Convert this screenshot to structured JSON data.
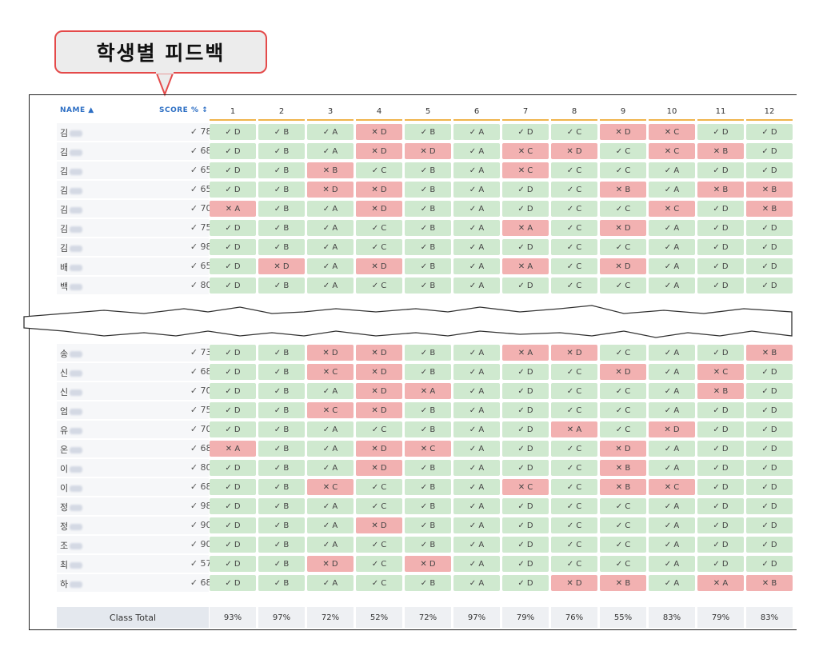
{
  "callout": {
    "title": "학생별 피드백"
  },
  "headers": {
    "name": "NAME ▲",
    "score": "SCORE % ↕"
  },
  "questions": [
    "1",
    "2",
    "3",
    "4",
    "5",
    "6",
    "7",
    "8",
    "9",
    "10",
    "11",
    "12"
  ],
  "colors": {
    "ok": "#cfe9cf",
    "bad": "#f2b1b1",
    "accent": "#2d6fc4",
    "divider": "#f0b44c",
    "callout_border": "#e44a4a"
  },
  "top_rows": [
    {
      "name": "김",
      "score": "78%",
      "cells": [
        [
          "ok",
          "D"
        ],
        [
          "ok",
          "B"
        ],
        [
          "ok",
          "A"
        ],
        [
          "bad",
          "D"
        ],
        [
          "ok",
          "B"
        ],
        [
          "ok",
          "A"
        ],
        [
          "ok",
          "D"
        ],
        [
          "ok",
          "C"
        ],
        [
          "bad",
          "D"
        ],
        [
          "bad",
          "C"
        ],
        [
          "ok",
          "D"
        ],
        [
          "ok",
          "D"
        ]
      ]
    },
    {
      "name": "김",
      "score": "68%",
      "cells": [
        [
          "ok",
          "D"
        ],
        [
          "ok",
          "B"
        ],
        [
          "ok",
          "A"
        ],
        [
          "bad",
          "D"
        ],
        [
          "bad",
          "D"
        ],
        [
          "ok",
          "A"
        ],
        [
          "bad",
          "C"
        ],
        [
          "bad",
          "D"
        ],
        [
          "ok",
          "C"
        ],
        [
          "bad",
          "C"
        ],
        [
          "bad",
          "B"
        ],
        [
          "ok",
          "D"
        ]
      ]
    },
    {
      "name": "김",
      "score": "65%",
      "cells": [
        [
          "ok",
          "D"
        ],
        [
          "ok",
          "B"
        ],
        [
          "bad",
          "B"
        ],
        [
          "ok",
          "C"
        ],
        [
          "ok",
          "B"
        ],
        [
          "ok",
          "A"
        ],
        [
          "bad",
          "C"
        ],
        [
          "ok",
          "C"
        ],
        [
          "ok",
          "C"
        ],
        [
          "ok",
          "A"
        ],
        [
          "ok",
          "D"
        ],
        [
          "ok",
          "D"
        ]
      ]
    },
    {
      "name": "김",
      "score": "65%",
      "cells": [
        [
          "ok",
          "D"
        ],
        [
          "ok",
          "B"
        ],
        [
          "bad",
          "D"
        ],
        [
          "bad",
          "D"
        ],
        [
          "ok",
          "B"
        ],
        [
          "ok",
          "A"
        ],
        [
          "ok",
          "D"
        ],
        [
          "ok",
          "C"
        ],
        [
          "bad",
          "B"
        ],
        [
          "ok",
          "A"
        ],
        [
          "bad",
          "B"
        ],
        [
          "bad",
          "B"
        ]
      ]
    },
    {
      "name": "김",
      "score": "70%",
      "cells": [
        [
          "bad",
          "A"
        ],
        [
          "ok",
          "B"
        ],
        [
          "ok",
          "A"
        ],
        [
          "bad",
          "D"
        ],
        [
          "ok",
          "B"
        ],
        [
          "ok",
          "A"
        ],
        [
          "ok",
          "D"
        ],
        [
          "ok",
          "C"
        ],
        [
          "ok",
          "C"
        ],
        [
          "bad",
          "C"
        ],
        [
          "ok",
          "D"
        ],
        [
          "bad",
          "B"
        ]
      ]
    },
    {
      "name": "김",
      "score": "75%",
      "cells": [
        [
          "ok",
          "D"
        ],
        [
          "ok",
          "B"
        ],
        [
          "ok",
          "A"
        ],
        [
          "ok",
          "C"
        ],
        [
          "ok",
          "B"
        ],
        [
          "ok",
          "A"
        ],
        [
          "bad",
          "A"
        ],
        [
          "ok",
          "C"
        ],
        [
          "bad",
          "D"
        ],
        [
          "ok",
          "A"
        ],
        [
          "ok",
          "D"
        ],
        [
          "ok",
          "D"
        ]
      ]
    },
    {
      "name": "김",
      "score": "98%",
      "cells": [
        [
          "ok",
          "D"
        ],
        [
          "ok",
          "B"
        ],
        [
          "ok",
          "A"
        ],
        [
          "ok",
          "C"
        ],
        [
          "ok",
          "B"
        ],
        [
          "ok",
          "A"
        ],
        [
          "ok",
          "D"
        ],
        [
          "ok",
          "C"
        ],
        [
          "ok",
          "C"
        ],
        [
          "ok",
          "A"
        ],
        [
          "ok",
          "D"
        ],
        [
          "ok",
          "D"
        ]
      ]
    },
    {
      "name": "배",
      "score": "65%",
      "cells": [
        [
          "ok",
          "D"
        ],
        [
          "bad",
          "D"
        ],
        [
          "ok",
          "A"
        ],
        [
          "bad",
          "D"
        ],
        [
          "ok",
          "B"
        ],
        [
          "ok",
          "A"
        ],
        [
          "bad",
          "A"
        ],
        [
          "ok",
          "C"
        ],
        [
          "bad",
          "D"
        ],
        [
          "ok",
          "A"
        ],
        [
          "ok",
          "D"
        ],
        [
          "ok",
          "D"
        ]
      ]
    },
    {
      "name": "백",
      "score": "80%",
      "cells": [
        [
          "ok",
          "D"
        ],
        [
          "ok",
          "B"
        ],
        [
          "ok",
          "A"
        ],
        [
          "ok",
          "C"
        ],
        [
          "ok",
          "B"
        ],
        [
          "ok",
          "A"
        ],
        [
          "ok",
          "D"
        ],
        [
          "ok",
          "C"
        ],
        [
          "ok",
          "C"
        ],
        [
          "ok",
          "A"
        ],
        [
          "ok",
          "D"
        ],
        [
          "ok",
          "D"
        ]
      ]
    }
  ],
  "bottom_rows": [
    {
      "name": "송",
      "score": "73%",
      "cells": [
        [
          "ok",
          "D"
        ],
        [
          "ok",
          "B"
        ],
        [
          "bad",
          "D"
        ],
        [
          "bad",
          "D"
        ],
        [
          "ok",
          "B"
        ],
        [
          "ok",
          "A"
        ],
        [
          "bad",
          "A"
        ],
        [
          "bad",
          "D"
        ],
        [
          "ok",
          "C"
        ],
        [
          "ok",
          "A"
        ],
        [
          "ok",
          "D"
        ],
        [
          "bad",
          "B"
        ]
      ]
    },
    {
      "name": "신",
      "score": "68%",
      "cells": [
        [
          "ok",
          "D"
        ],
        [
          "ok",
          "B"
        ],
        [
          "bad",
          "C"
        ],
        [
          "bad",
          "D"
        ],
        [
          "ok",
          "B"
        ],
        [
          "ok",
          "A"
        ],
        [
          "ok",
          "D"
        ],
        [
          "ok",
          "C"
        ],
        [
          "bad",
          "D"
        ],
        [
          "ok",
          "A"
        ],
        [
          "bad",
          "C"
        ],
        [
          "ok",
          "D"
        ]
      ]
    },
    {
      "name": "신",
      "score": "70%",
      "cells": [
        [
          "ok",
          "D"
        ],
        [
          "ok",
          "B"
        ],
        [
          "ok",
          "A"
        ],
        [
          "bad",
          "D"
        ],
        [
          "bad",
          "A"
        ],
        [
          "ok",
          "A"
        ],
        [
          "ok",
          "D"
        ],
        [
          "ok",
          "C"
        ],
        [
          "ok",
          "C"
        ],
        [
          "ok",
          "A"
        ],
        [
          "bad",
          "B"
        ],
        [
          "ok",
          "D"
        ]
      ]
    },
    {
      "name": "엄",
      "score": "75%",
      "cells": [
        [
          "ok",
          "D"
        ],
        [
          "ok",
          "B"
        ],
        [
          "bad",
          "C"
        ],
        [
          "bad",
          "D"
        ],
        [
          "ok",
          "B"
        ],
        [
          "ok",
          "A"
        ],
        [
          "ok",
          "D"
        ],
        [
          "ok",
          "C"
        ],
        [
          "ok",
          "C"
        ],
        [
          "ok",
          "A"
        ],
        [
          "ok",
          "D"
        ],
        [
          "ok",
          "D"
        ]
      ]
    },
    {
      "name": "유",
      "score": "70%",
      "cells": [
        [
          "ok",
          "D"
        ],
        [
          "ok",
          "B"
        ],
        [
          "ok",
          "A"
        ],
        [
          "ok",
          "C"
        ],
        [
          "ok",
          "B"
        ],
        [
          "ok",
          "A"
        ],
        [
          "ok",
          "D"
        ],
        [
          "bad",
          "A"
        ],
        [
          "ok",
          "C"
        ],
        [
          "bad",
          "D"
        ],
        [
          "ok",
          "D"
        ],
        [
          "ok",
          "D"
        ]
      ]
    },
    {
      "name": "온",
      "score": "68%",
      "cells": [
        [
          "bad",
          "A"
        ],
        [
          "ok",
          "B"
        ],
        [
          "ok",
          "A"
        ],
        [
          "bad",
          "D"
        ],
        [
          "bad",
          "C"
        ],
        [
          "ok",
          "A"
        ],
        [
          "ok",
          "D"
        ],
        [
          "ok",
          "C"
        ],
        [
          "bad",
          "D"
        ],
        [
          "ok",
          "A"
        ],
        [
          "ok",
          "D"
        ],
        [
          "ok",
          "D"
        ]
      ]
    },
    {
      "name": "이",
      "score": "80%",
      "cells": [
        [
          "ok",
          "D"
        ],
        [
          "ok",
          "B"
        ],
        [
          "ok",
          "A"
        ],
        [
          "bad",
          "D"
        ],
        [
          "ok",
          "B"
        ],
        [
          "ok",
          "A"
        ],
        [
          "ok",
          "D"
        ],
        [
          "ok",
          "C"
        ],
        [
          "bad",
          "B"
        ],
        [
          "ok",
          "A"
        ],
        [
          "ok",
          "D"
        ],
        [
          "ok",
          "D"
        ]
      ]
    },
    {
      "name": "이",
      "score": "68%",
      "cells": [
        [
          "ok",
          "D"
        ],
        [
          "ok",
          "B"
        ],
        [
          "bad",
          "C"
        ],
        [
          "ok",
          "C"
        ],
        [
          "ok",
          "B"
        ],
        [
          "ok",
          "A"
        ],
        [
          "bad",
          "C"
        ],
        [
          "ok",
          "C"
        ],
        [
          "bad",
          "B"
        ],
        [
          "bad",
          "C"
        ],
        [
          "ok",
          "D"
        ],
        [
          "ok",
          "D"
        ]
      ]
    },
    {
      "name": "정",
      "score": "98%",
      "cells": [
        [
          "ok",
          "D"
        ],
        [
          "ok",
          "B"
        ],
        [
          "ok",
          "A"
        ],
        [
          "ok",
          "C"
        ],
        [
          "ok",
          "B"
        ],
        [
          "ok",
          "A"
        ],
        [
          "ok",
          "D"
        ],
        [
          "ok",
          "C"
        ],
        [
          "ok",
          "C"
        ],
        [
          "ok",
          "A"
        ],
        [
          "ok",
          "D"
        ],
        [
          "ok",
          "D"
        ]
      ]
    },
    {
      "name": "정",
      "score": "90%",
      "cells": [
        [
          "ok",
          "D"
        ],
        [
          "ok",
          "B"
        ],
        [
          "ok",
          "A"
        ],
        [
          "bad",
          "D"
        ],
        [
          "ok",
          "B"
        ],
        [
          "ok",
          "A"
        ],
        [
          "ok",
          "D"
        ],
        [
          "ok",
          "C"
        ],
        [
          "ok",
          "C"
        ],
        [
          "ok",
          "A"
        ],
        [
          "ok",
          "D"
        ],
        [
          "ok",
          "D"
        ]
      ]
    },
    {
      "name": "조",
      "score": "90%",
      "cells": [
        [
          "ok",
          "D"
        ],
        [
          "ok",
          "B"
        ],
        [
          "ok",
          "A"
        ],
        [
          "ok",
          "C"
        ],
        [
          "ok",
          "B"
        ],
        [
          "ok",
          "A"
        ],
        [
          "ok",
          "D"
        ],
        [
          "ok",
          "C"
        ],
        [
          "ok",
          "C"
        ],
        [
          "ok",
          "A"
        ],
        [
          "ok",
          "D"
        ],
        [
          "ok",
          "D"
        ]
      ]
    },
    {
      "name": "최",
      "score": "57%",
      "cells": [
        [
          "ok",
          "D"
        ],
        [
          "ok",
          "B"
        ],
        [
          "bad",
          "D"
        ],
        [
          "ok",
          "C"
        ],
        [
          "bad",
          "D"
        ],
        [
          "ok",
          "A"
        ],
        [
          "ok",
          "D"
        ],
        [
          "ok",
          "C"
        ],
        [
          "ok",
          "C"
        ],
        [
          "ok",
          "A"
        ],
        [
          "ok",
          "D"
        ],
        [
          "ok",
          "D"
        ]
      ]
    },
    {
      "name": "하",
      "score": "68%",
      "cells": [
        [
          "ok",
          "D"
        ],
        [
          "ok",
          "B"
        ],
        [
          "ok",
          "A"
        ],
        [
          "ok",
          "C"
        ],
        [
          "ok",
          "B"
        ],
        [
          "ok",
          "A"
        ],
        [
          "ok",
          "D"
        ],
        [
          "bad",
          "D"
        ],
        [
          "bad",
          "B"
        ],
        [
          "ok",
          "A"
        ],
        [
          "bad",
          "A"
        ],
        [
          "bad",
          "B"
        ]
      ]
    }
  ],
  "class_total": {
    "label": "Class Total",
    "values": [
      "93%",
      "97%",
      "72%",
      "52%",
      "72%",
      "97%",
      "79%",
      "76%",
      "55%",
      "83%",
      "79%",
      "83%"
    ]
  }
}
